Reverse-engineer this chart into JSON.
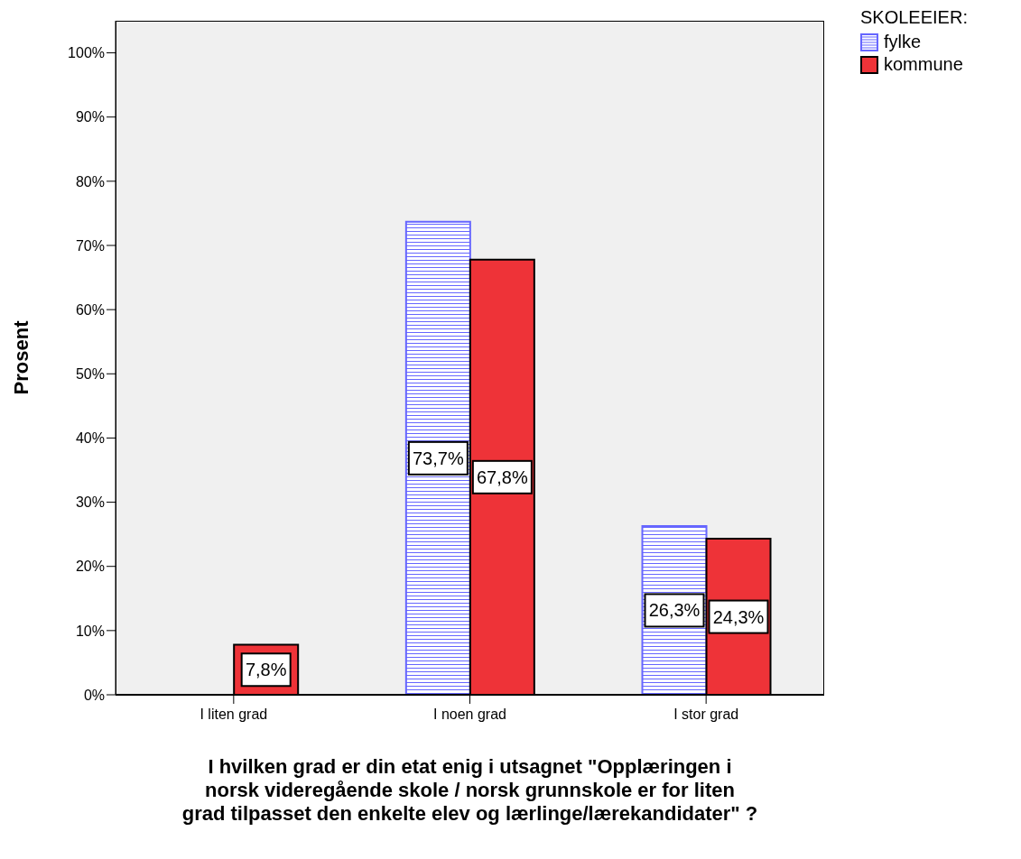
{
  "chart_data": {
    "type": "bar",
    "ylabel": "Prosent",
    "xlabel": "I hvilken grad er din etat enig i utsagnet \"Opplæringen i norsk videregående skole / norsk grunnskole er for liten grad tilpasset den enkelte elev og lærlinge/lærekandidater\" ?",
    "legend_title": "SKOLEEIER:",
    "legend": "top right",
    "categories": [
      "I liten grad",
      "I noen grad",
      "I stor grad"
    ],
    "series": [
      {
        "name": "fylke",
        "color": "#6666ff",
        "values": [
          0,
          73.7,
          26.3
        ],
        "value_labels": [
          null,
          "73,7%",
          "26,3%"
        ]
      },
      {
        "name": "kommune",
        "color": "#ee3338",
        "values": [
          7.8,
          67.8,
          24.3
        ],
        "value_labels": [
          "7,8%",
          "67,8%",
          "24,3%"
        ]
      }
    ],
    "ylim": [
      0,
      105
    ],
    "yticks": [
      {
        "value": 0,
        "label": "0%"
      },
      {
        "value": 10,
        "label": "10%"
      },
      {
        "value": 20,
        "label": "20%"
      },
      {
        "value": 30,
        "label": "30%"
      },
      {
        "value": 40,
        "label": "40%"
      },
      {
        "value": 50,
        "label": "50%"
      },
      {
        "value": 60,
        "label": "60%"
      },
      {
        "value": 70,
        "label": "70%"
      },
      {
        "value": 80,
        "label": "80%"
      },
      {
        "value": 90,
        "label": "90%"
      },
      {
        "value": 100,
        "label": "100%"
      }
    ]
  }
}
